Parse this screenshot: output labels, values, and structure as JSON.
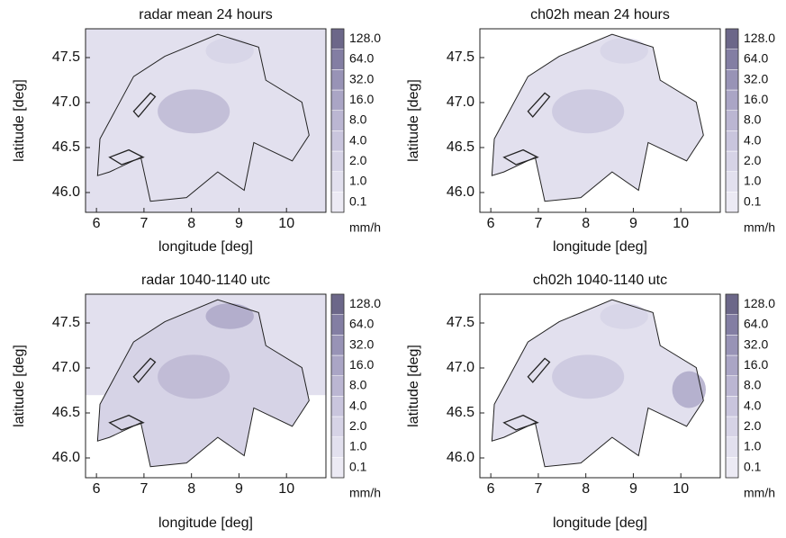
{
  "chart_data": [
    {
      "type": "contour",
      "title": "radar mean 24 hours",
      "xlabel": "longitude [deg]",
      "ylabel": "latitude [deg]",
      "xlim": [
        5.77,
        10.83
      ],
      "ylim": [
        45.78,
        47.82
      ],
      "xticks": [
        6,
        7,
        8,
        9,
        10
      ],
      "yticks": [
        {
          "value": 46,
          "label": "46.0"
        },
        46.5,
        {
          "value": 47,
          "label": "47.0"
        },
        47.5
      ],
      "colorbar_ticks": [
        0.1,
        {
          "value": 1,
          "label": "1.0"
        },
        {
          "value": 2,
          "label": "2.0"
        },
        {
          "value": 4,
          "label": "4.0"
        },
        {
          "value": 8,
          "label": "8.0"
        },
        {
          "value": 16,
          "label": "16.0"
        },
        {
          "value": 32,
          "label": "32.0"
        },
        {
          "value": 64,
          "label": "64.0"
        },
        {
          "value": 128,
          "label": "128.0"
        }
      ],
      "colorbar_label": "mm/h",
      "colors": [
        "#eceaf4",
        "#e2e0ee",
        "#d6d3e6",
        "#c9c5dd",
        "#bbb6d2",
        "#aaa5c5",
        "#9893b6",
        "#837ea3",
        "#6c6789"
      ]
    },
    {
      "type": "contour",
      "title": "ch02h mean 24 hours",
      "xlabel": "longitude [deg]",
      "ylabel": "latitude [deg]",
      "xlim": [
        5.77,
        10.83
      ],
      "ylim": [
        45.78,
        47.82
      ],
      "xticks": [
        6,
        7,
        8,
        9,
        10
      ],
      "yticks": [
        {
          "value": 46,
          "label": "46.0"
        },
        46.5,
        {
          "value": 47,
          "label": "47.0"
        },
        47.5
      ],
      "colorbar_ticks": [
        0.1,
        {
          "value": 1,
          "label": "1.0"
        },
        {
          "value": 2,
          "label": "2.0"
        },
        {
          "value": 4,
          "label": "4.0"
        },
        {
          "value": 8,
          "label": "8.0"
        },
        {
          "value": 16,
          "label": "16.0"
        },
        {
          "value": 32,
          "label": "32.0"
        },
        {
          "value": 64,
          "label": "64.0"
        },
        {
          "value": 128,
          "label": "128.0"
        }
      ],
      "colorbar_label": "mm/h",
      "colors": [
        "#eceaf4",
        "#e2e0ee",
        "#d6d3e6",
        "#c9c5dd",
        "#bbb6d2",
        "#aaa5c5",
        "#9893b6",
        "#837ea3",
        "#6c6789"
      ]
    },
    {
      "type": "contour",
      "title": "radar 1040-1140 utc",
      "xlabel": "longitude [deg]",
      "ylabel": "latitude [deg]",
      "xlim": [
        5.77,
        10.83
      ],
      "ylim": [
        45.78,
        47.82
      ],
      "xticks": [
        6,
        7,
        8,
        9,
        10
      ],
      "yticks": [
        {
          "value": 46,
          "label": "46.0"
        },
        46.5,
        {
          "value": 47,
          "label": "47.0"
        },
        47.5
      ],
      "colorbar_ticks": [
        0.1,
        {
          "value": 1,
          "label": "1.0"
        },
        {
          "value": 2,
          "label": "2.0"
        },
        {
          "value": 4,
          "label": "4.0"
        },
        {
          "value": 8,
          "label": "8.0"
        },
        {
          "value": 16,
          "label": "16.0"
        },
        {
          "value": 32,
          "label": "32.0"
        },
        {
          "value": 64,
          "label": "64.0"
        },
        {
          "value": 128,
          "label": "128.0"
        }
      ],
      "colorbar_label": "mm/h",
      "colors": [
        "#eceaf4",
        "#e2e0ee",
        "#d6d3e6",
        "#c9c5dd",
        "#bbb6d2",
        "#aaa5c5",
        "#9893b6",
        "#837ea3",
        "#6c6789"
      ]
    },
    {
      "type": "contour",
      "title": "ch02h 1040-1140 utc",
      "xlabel": "longitude [deg]",
      "ylabel": "latitude [deg]",
      "xlim": [
        5.77,
        10.83
      ],
      "ylim": [
        45.78,
        47.82
      ],
      "xticks": [
        6,
        7,
        8,
        9,
        10
      ],
      "yticks": [
        {
          "value": 46,
          "label": "46.0"
        },
        46.5,
        {
          "value": 47,
          "label": "47.0"
        },
        47.5
      ],
      "colorbar_ticks": [
        0.1,
        {
          "value": 1,
          "label": "1.0"
        },
        {
          "value": 2,
          "label": "2.0"
        },
        {
          "value": 4,
          "label": "4.0"
        },
        {
          "value": 8,
          "label": "8.0"
        },
        {
          "value": 16,
          "label": "16.0"
        },
        {
          "value": 32,
          "label": "32.0"
        },
        {
          "value": 64,
          "label": "64.0"
        },
        {
          "value": 128,
          "label": "128.0"
        }
      ],
      "colorbar_label": "mm/h",
      "colors": [
        "#eceaf4",
        "#e2e0ee",
        "#d6d3e6",
        "#c9c5dd",
        "#bbb6d2",
        "#aaa5c5",
        "#9893b6",
        "#837ea3",
        "#6c6789"
      ]
    }
  ]
}
